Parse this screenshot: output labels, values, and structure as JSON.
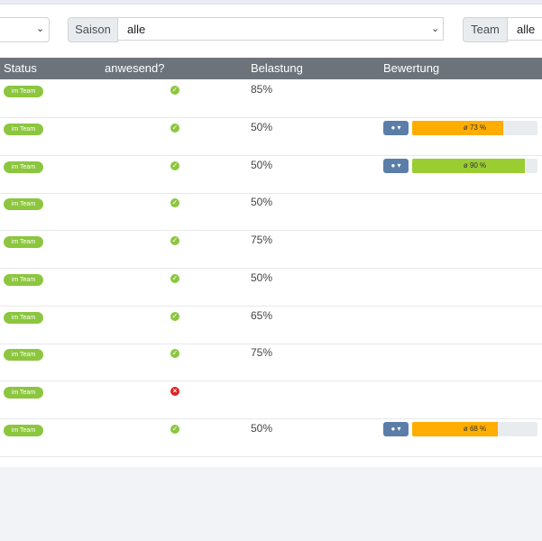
{
  "filters": {
    "season": {
      "label": "Saison",
      "value": "alle"
    },
    "team": {
      "label": "Team",
      "value": "alle"
    }
  },
  "table": {
    "headers": {
      "status": "Status",
      "present": "anwesend?",
      "load": "Belastung",
      "rating": "Bewertung"
    },
    "rows": [
      {
        "status": "im Team",
        "present": true,
        "load": "85%",
        "rating": null
      },
      {
        "status": "im Team",
        "present": true,
        "load": "50%",
        "rating": {
          "label": "ø 73 %",
          "percent": 73,
          "color": "#ffad00"
        }
      },
      {
        "status": "im Team",
        "present": true,
        "load": "50%",
        "rating": {
          "label": "ø 90 %",
          "percent": 90,
          "color": "#9acd32"
        }
      },
      {
        "status": "im Team",
        "present": true,
        "load": "50%",
        "rating": null
      },
      {
        "status": "im Team",
        "present": true,
        "load": "75%",
        "rating": null
      },
      {
        "status": "im Team",
        "present": true,
        "load": "50%",
        "rating": null
      },
      {
        "status": "im Team",
        "present": true,
        "load": "65%",
        "rating": null
      },
      {
        "status": "im Team",
        "present": true,
        "load": "75%",
        "rating": null
      },
      {
        "status": "im Team",
        "present": false,
        "load": "",
        "rating": null
      },
      {
        "status": "im Team",
        "present": true,
        "load": "50%",
        "rating": {
          "label": "ø 68 %",
          "percent": 68,
          "color": "#ffad00"
        }
      }
    ]
  },
  "icons": {
    "present_yes": "check-circle-icon",
    "present_no": "x-circle-icon",
    "rating_button": "circle-dropdown-icon"
  },
  "colors": {
    "badge": "#8cc63f",
    "header": "#6c737b",
    "rating_button": "#5b7ea8"
  }
}
